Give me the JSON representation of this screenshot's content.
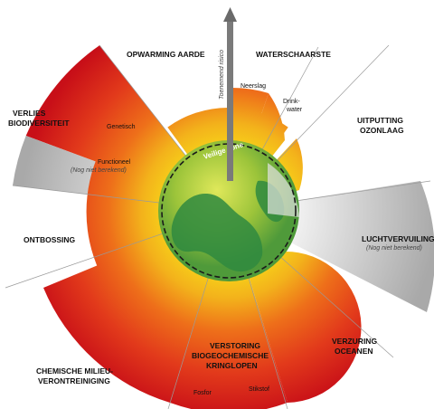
{
  "arrow_label": "Toenemend risico",
  "safe_zone_label": "Veilige zone",
  "boundaries": {
    "climate": "OPWARMING AARDE",
    "freshwater": "WATERSCHAARSTE",
    "ozone_line1": "UITPUTTING",
    "ozone_line2": "OZONLAAG",
    "aerosol": "LUCHTVERVUILING",
    "aerosol_note": "(Nog niet berekend)",
    "acid_line1": "VERZURING",
    "acid_line2": "OCEANEN",
    "biogeo_line1": "VERSTORING",
    "biogeo_line2": "BIOGEOCHEMISCHE",
    "biogeo_line3": "KRINGLOPEN",
    "novel_line1": "CHEMISCHE MILIEU-",
    "novel_line2": "VERONTREINIGING",
    "land": "ONTBOSSING",
    "biodiv_line1": "VERLIES",
    "biodiv_line2": "BIODIVERSITEIT"
  },
  "sublabels": {
    "rain": "Neerslag",
    "drinking_line1": "Drink-",
    "drinking_line2": "water",
    "genetic": "Genetisch",
    "functional": "Functioneel",
    "functional_note": "(Nog niet berekend)",
    "phosphorus": "Fosfor",
    "nitrogen": "Stikstof"
  },
  "colors": {
    "safe": "#3aa35a",
    "zone_yellow": "#f2c318",
    "zone_orange": "#f07a18",
    "high_risk": "#d8161b",
    "not_quantified": "#c9c9c9",
    "arrow": "#7a7a7a"
  }
}
